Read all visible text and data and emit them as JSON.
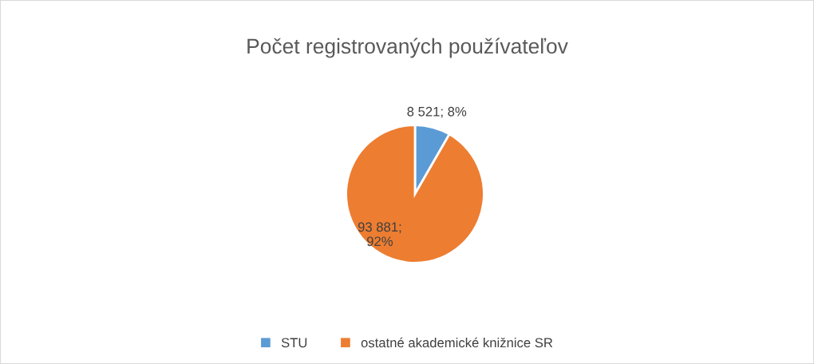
{
  "chart_data": {
    "type": "pie",
    "title": "Počet registrovaných používateľov",
    "categories": [
      "STU",
      "ostatné akademické knižnice SR"
    ],
    "values": [
      8521,
      93881
    ],
    "colors": [
      "#5b9bd5",
      "#ed7d31"
    ],
    "value_labels": [
      "8 521; 8%",
      "93 881;\n92%"
    ],
    "legend": "bottom"
  }
}
